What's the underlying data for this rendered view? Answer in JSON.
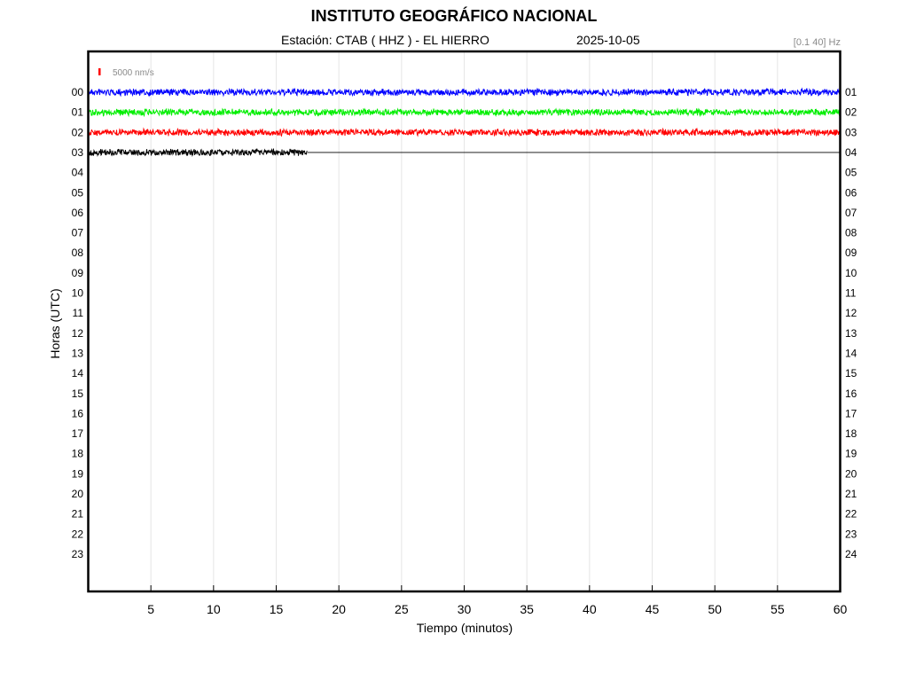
{
  "header": {
    "title": "INSTITUTO GEOGRÁFICO NACIONAL",
    "station": "Estación:  CTAB ( HHZ ) - EL HIERRO",
    "date": "2025-10-05",
    "filter": "[0.1 40] Hz"
  },
  "chart_data": {
    "type": "line",
    "title": "INSTITUTO GEOGRÁFICO NACIONAL",
    "xlabel": "Tiempo (minutos)",
    "ylabel": "Horas (UTC)",
    "xlim": [
      0,
      60
    ],
    "x_ticks": [
      5,
      10,
      15,
      20,
      25,
      30,
      35,
      40,
      45,
      50,
      55,
      60
    ],
    "left_hour_labels": [
      "00",
      "01",
      "02",
      "03",
      "04",
      "05",
      "06",
      "07",
      "08",
      "09",
      "10",
      "11",
      "12",
      "13",
      "14",
      "15",
      "16",
      "17",
      "18",
      "19",
      "20",
      "21",
      "22",
      "23"
    ],
    "right_hour_labels": [
      "01",
      "02",
      "03",
      "04",
      "05",
      "06",
      "07",
      "08",
      "09",
      "10",
      "11",
      "12",
      "13",
      "14",
      "15",
      "16",
      "17",
      "18",
      "19",
      "20",
      "21",
      "22",
      "23",
      "24"
    ],
    "scale_label": "5000 nm/s",
    "grid": "vertical",
    "series": [
      {
        "hour": "00",
        "color": "#0000ff",
        "x_start": 0,
        "x_end": 60
      },
      {
        "hour": "01",
        "color": "#00ee00",
        "x_start": 0,
        "x_end": 60
      },
      {
        "hour": "02",
        "color": "#ff0000",
        "x_start": 0,
        "x_end": 60
      },
      {
        "hour": "03",
        "color": "#000000",
        "x_start": 0,
        "x_end": 17.5
      }
    ]
  }
}
